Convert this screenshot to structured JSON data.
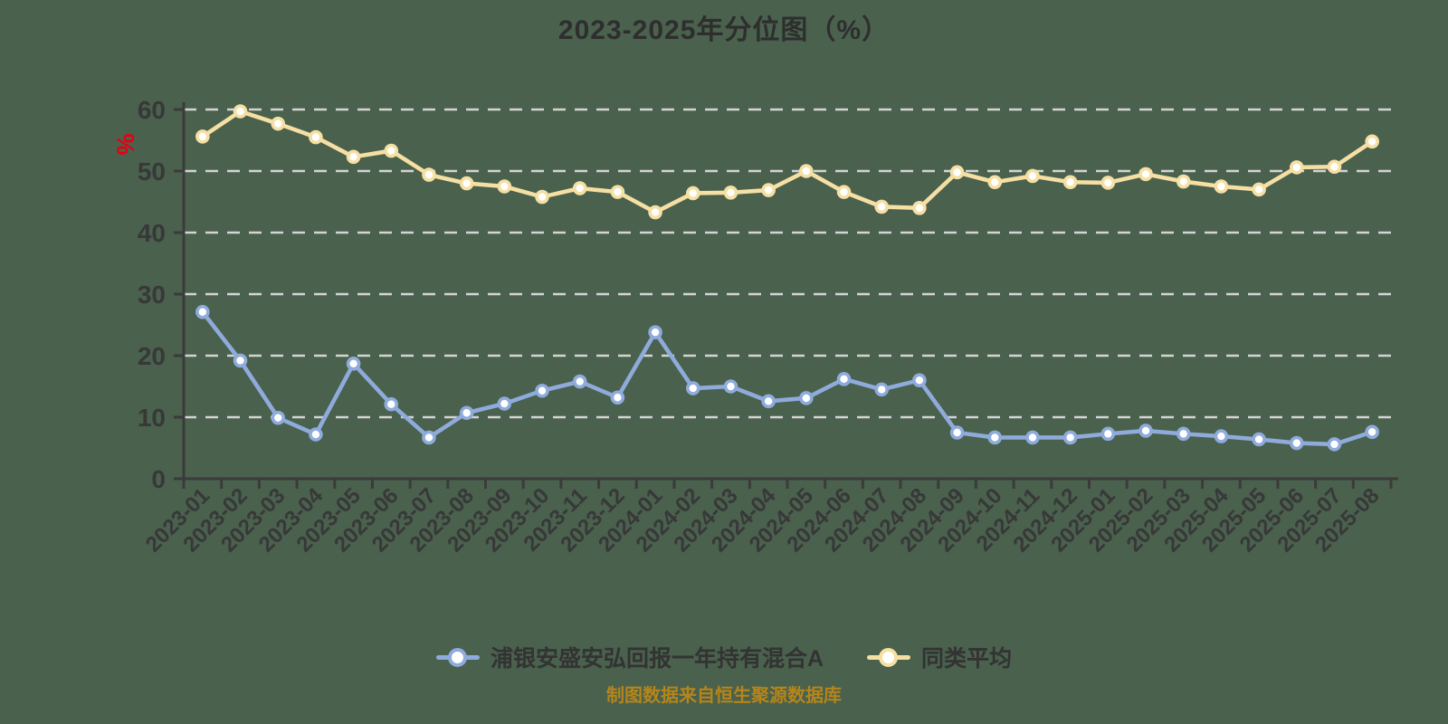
{
  "title": "2023-2025年分位图（%）",
  "y_axis_unit": "%",
  "footer_note": "制图数据来自恒生聚源数据库",
  "colors": {
    "background": "#49614d",
    "title_text": "#2e2e2e",
    "axis": "#3b3b3b",
    "tick_label": "#383838",
    "grid": "#d4d4d4",
    "unit_label": "#e60012",
    "legend_text": "#333333",
    "footer_text": "#b5851b",
    "marker_fill": "#ffffff"
  },
  "chart_data": {
    "type": "line",
    "title": "2023-2025年分位图（%）",
    "xlabel": "",
    "ylabel": "%",
    "ylim": [
      0,
      60
    ],
    "y_ticks": [
      0,
      10,
      20,
      30,
      40,
      50,
      60
    ],
    "grid": "dashed horizontal",
    "legend_position": "bottom",
    "categories": [
      "2023-01",
      "2023-02",
      "2023-03",
      "2023-04",
      "2023-05",
      "2023-06",
      "2023-07",
      "2023-08",
      "2023-09",
      "2023-10",
      "2023-11",
      "2023-12",
      "2024-01",
      "2024-02",
      "2024-03",
      "2024-04",
      "2024-05",
      "2024-06",
      "2024-07",
      "2024-08",
      "2024-09",
      "2024-10",
      "2024-11",
      "2024-12",
      "2025-01",
      "2025-02",
      "2025-03",
      "2025-04",
      "2025-05",
      "2025-06",
      "2025-07",
      "2025-08"
    ],
    "series": [
      {
        "name": "浦银安盛安弘回报一年持有混合A",
        "color": "#8fabdb",
        "values": [
          27.1,
          19.2,
          9.9,
          7.2,
          18.7,
          12.1,
          6.7,
          10.7,
          12.2,
          14.3,
          15.8,
          13.2,
          23.8,
          14.7,
          15.0,
          12.6,
          13.1,
          16.2,
          14.5,
          16.0,
          7.5,
          6.7,
          6.7,
          6.7,
          7.3,
          7.8,
          7.3,
          6.9,
          6.4,
          5.8,
          5.6,
          7.6
        ]
      },
      {
        "name": "同类平均",
        "color": "#f6dfa3",
        "values": [
          55.6,
          59.7,
          57.7,
          55.5,
          52.3,
          53.3,
          49.4,
          48.0,
          47.5,
          45.8,
          47.2,
          46.6,
          43.3,
          46.4,
          46.5,
          46.9,
          50.0,
          46.6,
          44.2,
          44.0,
          49.8,
          48.2,
          49.2,
          48.2,
          48.1,
          49.5,
          48.3,
          47.5,
          47.0,
          50.6,
          50.7,
          54.8
        ]
      }
    ]
  },
  "legend": [
    {
      "label": "浦银安盛安弘回报一年持有混合A"
    },
    {
      "label": "同类平均"
    }
  ]
}
